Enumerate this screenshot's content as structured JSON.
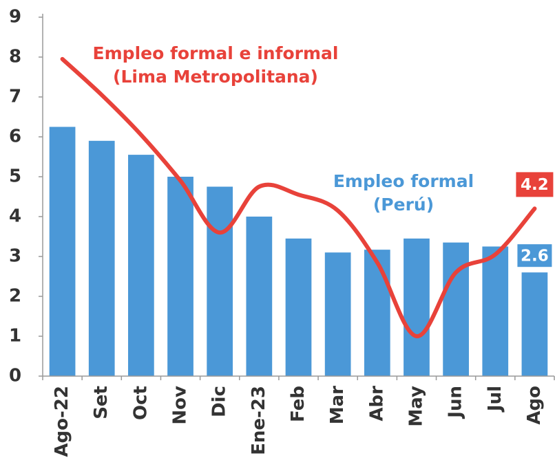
{
  "chart_data": {
    "type": "bar_line",
    "categories": [
      "Ago-22",
      "Set",
      "Oct",
      "Nov",
      "Dic",
      "Ene-23",
      "Feb",
      "Mar",
      "Abr",
      "May",
      "Jun",
      "Jul",
      "Ago"
    ],
    "series": [
      {
        "name": [
          "Empleo formal",
          "(Perú)"
        ],
        "type": "bar",
        "color": "#4b98d7",
        "values": [
          6.25,
          5.9,
          5.55,
          5.0,
          4.75,
          4.0,
          3.45,
          3.1,
          3.17,
          3.45,
          3.35,
          3.25,
          2.6
        ]
      },
      {
        "name": [
          "Empleo formal e informal",
          "(Lima Metropolitana)"
        ],
        "type": "line",
        "color": "#e8423a",
        "values": [
          7.95,
          7.05,
          6.05,
          4.9,
          3.6,
          4.75,
          4.55,
          4.15,
          2.85,
          1.0,
          2.6,
          3.05,
          4.2
        ]
      }
    ],
    "ylim": [
      0,
      9
    ],
    "yticks": [
      0,
      1,
      2,
      3,
      4,
      5,
      6,
      7,
      8,
      9
    ]
  }
}
